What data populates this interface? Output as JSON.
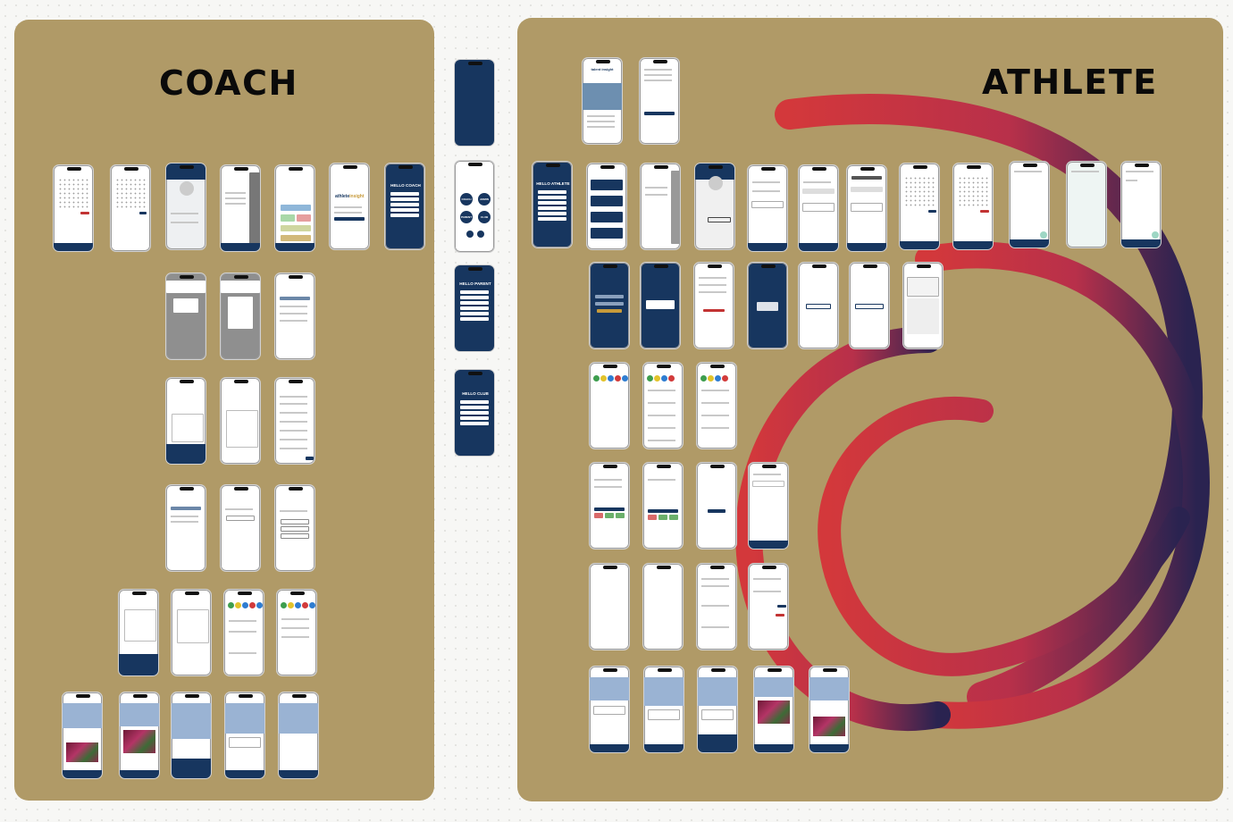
{
  "coach_board": {
    "title": "COACH"
  },
  "athlete_board": {
    "title": "ATHLETE"
  },
  "middle": {
    "role_buttons": [
      "COACH",
      "ADMIN",
      "PARENT",
      "CLUB"
    ],
    "hello_parent": "HELLO PARENT",
    "hello_club": "HELLO CLUB"
  },
  "screens": {
    "hello_coach": "HELLO COACH",
    "hello_athlete": "HELLO ATHLETE",
    "logo_text_a": "athlete",
    "logo_text_b": "insight",
    "talent_logo": "talent insight"
  },
  "colors": {
    "board": "#b09a67",
    "navy": "#17365f",
    "gold": "#c79a3a",
    "swoosh_red": "#d3383b",
    "swoosh_navy": "#2a2350"
  }
}
